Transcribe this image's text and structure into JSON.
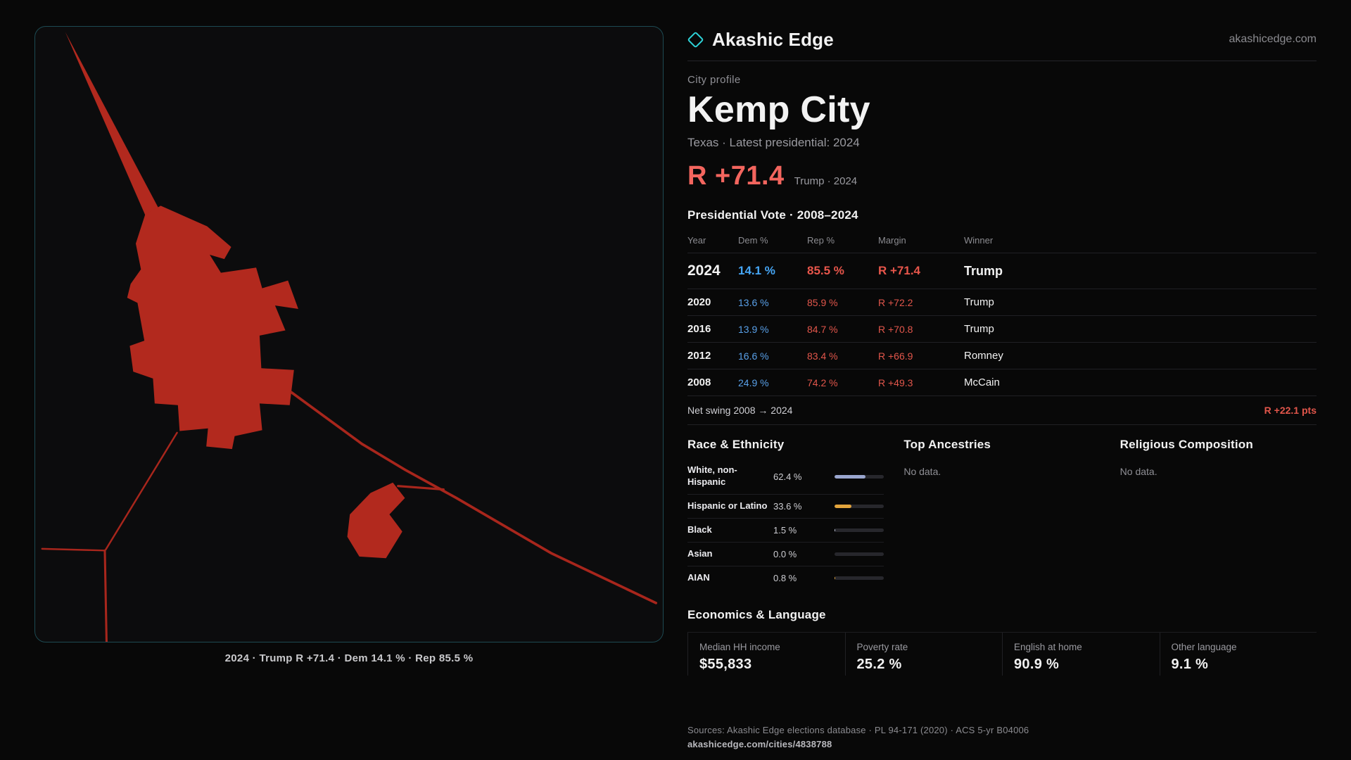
{
  "colors": {
    "accent_red": "#e8564b",
    "headline_red": "#f3655e",
    "dem_blue": "#59a0e8",
    "map_fill": "#b2291e",
    "teal_accent": "#2ed3d8"
  },
  "header": {
    "brand": "Akashic Edge",
    "domain": "akashicedge.com"
  },
  "map": {
    "caption": "2024 · Trump R +71.4 · Dem 14.1 % · Rep 85.5 %"
  },
  "profile": {
    "kicker": "City profile",
    "title": "Kemp City",
    "subtitle": "Texas · Latest presidential: 2024",
    "margin_value": "R +71.4",
    "margin_caption": "Trump · 2024"
  },
  "vote_table": {
    "title": "Presidential Vote · 2008–2024",
    "columns": [
      "Year",
      "Dem %",
      "Rep %",
      "Margin",
      "Winner"
    ],
    "rows": [
      {
        "year": "2024",
        "dem": "14.1 %",
        "rep": "85.5 %",
        "margin": "R +71.4",
        "winner": "Trump"
      },
      {
        "year": "2020",
        "dem": "13.6 %",
        "rep": "85.9 %",
        "margin": "R +72.2",
        "winner": "Trump"
      },
      {
        "year": "2016",
        "dem": "13.9 %",
        "rep": "84.7 %",
        "margin": "R +70.8",
        "winner": "Trump"
      },
      {
        "year": "2012",
        "dem": "16.6 %",
        "rep": "83.4 %",
        "margin": "R +66.9",
        "winner": "Romney"
      },
      {
        "year": "2008",
        "dem": "24.9 %",
        "rep": "74.2 %",
        "margin": "R +49.3",
        "winner": "McCain"
      }
    ]
  },
  "net_swing": {
    "label": "Net swing 2008 → 2024",
    "value": "R +22.1 pts"
  },
  "demographics": {
    "race": {
      "title": "Race & Ethnicity",
      "rows": [
        {
          "label": "White, non-Hispanic",
          "value": "62.4 %",
          "pct": 62.4,
          "color": "#9aa6cf"
        },
        {
          "label": "Hispanic or Latino",
          "value": "33.6 %",
          "pct": 33.6,
          "color": "#e3a43c"
        },
        {
          "label": "Black",
          "value": "1.5 %",
          "pct": 1.5,
          "color": "#c9cfe3"
        },
        {
          "label": "Asian",
          "value": "0.0 %",
          "pct": 0,
          "color": "#9aa6cf"
        },
        {
          "label": "AIAN",
          "value": "0.8 %",
          "pct": 0.8,
          "color": "#e3a43c"
        }
      ]
    },
    "ancestries": {
      "title": "Top Ancestries",
      "empty": "No data."
    },
    "religion": {
      "title": "Religious Composition",
      "empty": "No data."
    }
  },
  "economics": {
    "title": "Economics & Language",
    "stats": [
      {
        "label": "Median HH income",
        "value": "$55,833"
      },
      {
        "label": "Poverty rate",
        "value": "25.2 %"
      },
      {
        "label": "English at home",
        "value": "90.9 %"
      },
      {
        "label": "Other language",
        "value": "9.1 %"
      }
    ]
  },
  "footer": {
    "sources": "Sources: Akashic Edge elections database · PL 94-171 (2020) · ACS 5-yr B04006",
    "permalink": "akashicedge.com/cities/4838788"
  }
}
